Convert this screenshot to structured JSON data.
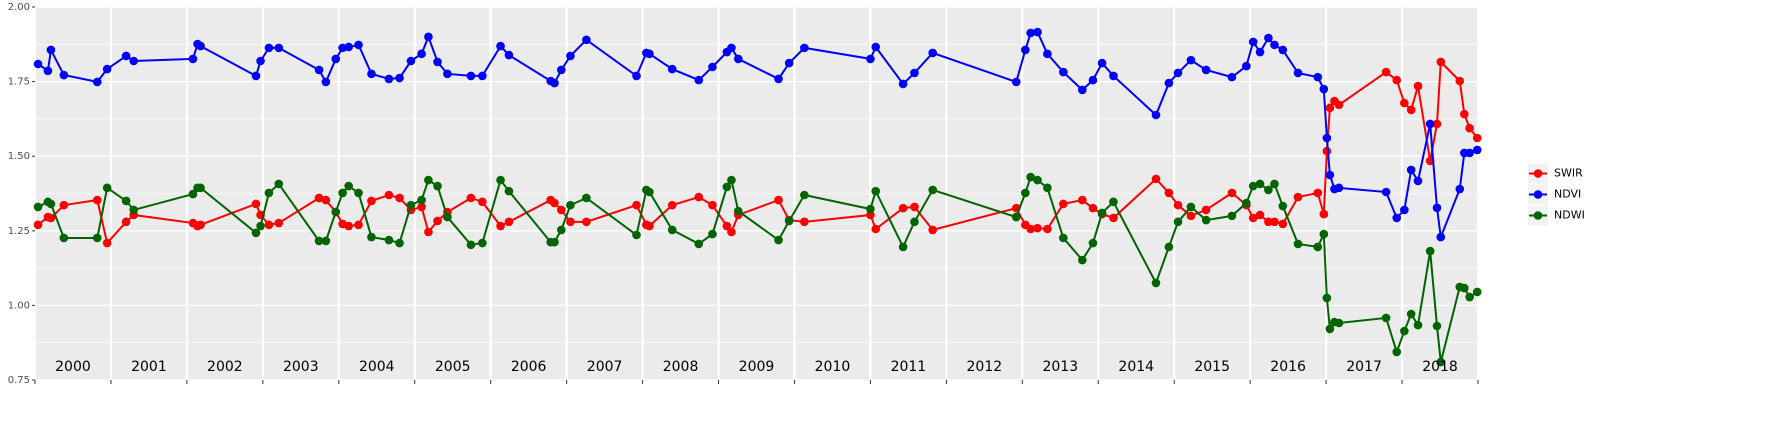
{
  "chart_data": {
    "type": "line",
    "x": [
      2000.04,
      2000.17,
      2000.21,
      2000.38,
      2000.82,
      2000.95,
      2001.2,
      2001.3,
      2002.08,
      2002.14,
      2002.18,
      2002.91,
      2002.97,
      2003.08,
      2003.21,
      2003.74,
      2003.83,
      2003.96,
      2004.05,
      2004.13,
      2004.26,
      2004.43,
      2004.66,
      2004.8,
      2004.95,
      2005.09,
      2005.18,
      2005.3,
      2005.43,
      2005.74,
      2005.89,
      2006.13,
      2006.24,
      2006.79,
      2006.84,
      2006.93,
      2007.05,
      2007.26,
      2007.92,
      2008.05,
      2008.09,
      2008.39,
      2008.74,
      2008.92,
      2009.11,
      2009.17,
      2009.26,
      2009.79,
      2009.93,
      2010.13,
      2011.0,
      2011.07,
      2011.43,
      2011.58,
      2011.82,
      2012.92,
      2013.04,
      2013.11,
      2013.2,
      2013.33,
      2013.54,
      2013.79,
      2013.93,
      2014.05,
      2014.2,
      2014.76,
      2014.93,
      2015.05,
      2015.22,
      2015.42,
      2015.76,
      2015.95,
      2016.04,
      2016.13,
      2016.24,
      2016.32,
      2016.43,
      2016.63,
      2016.89,
      2016.97,
      2017.01,
      2017.05,
      2017.11,
      2017.17,
      2017.79,
      2017.93,
      2018.03,
      2018.12,
      2018.21,
      2018.37,
      2018.46,
      2018.51,
      2018.76,
      2018.82,
      2018.89,
      2018.99
    ],
    "series": [
      {
        "name": "SWIR",
        "color": "#ff0000",
        "values": [
          1.27,
          1.296,
          1.293,
          1.336,
          1.353,
          1.209,
          1.28,
          1.303,
          1.276,
          1.266,
          1.27,
          1.34,
          1.303,
          1.27,
          1.276,
          1.36,
          1.353,
          1.313,
          1.273,
          1.266,
          1.27,
          1.35,
          1.37,
          1.36,
          1.32,
          1.33,
          1.246,
          1.283,
          1.313,
          1.36,
          1.347,
          1.266,
          1.28,
          1.353,
          1.343,
          1.32,
          1.28,
          1.28,
          1.336,
          1.27,
          1.266,
          1.336,
          1.363,
          1.336,
          1.266,
          1.246,
          1.303,
          1.353,
          1.286,
          1.28,
          1.303,
          1.256,
          1.326,
          1.33,
          1.253,
          1.326,
          1.27,
          1.256,
          1.259,
          1.256,
          1.34,
          1.353,
          1.326,
          1.306,
          1.293,
          1.424,
          1.377,
          1.336,
          1.3,
          1.32,
          1.377,
          1.336,
          1.293,
          1.303,
          1.28,
          1.28,
          1.273,
          1.363,
          1.377,
          1.306,
          1.517,
          1.662,
          1.685,
          1.672,
          1.782,
          1.755,
          1.678,
          1.655,
          1.735,
          1.484,
          1.608,
          1.816,
          1.752,
          1.641,
          1.594,
          1.561
        ]
      },
      {
        "name": "NDVI",
        "color": "#0000ff",
        "values": [
          1.809,
          1.786,
          1.856,
          1.772,
          1.749,
          1.792,
          1.836,
          1.819,
          1.826,
          1.876,
          1.869,
          1.769,
          1.819,
          1.863,
          1.863,
          1.789,
          1.749,
          1.826,
          1.863,
          1.866,
          1.873,
          1.776,
          1.759,
          1.762,
          1.819,
          1.843,
          1.9,
          1.816,
          1.776,
          1.769,
          1.769,
          1.869,
          1.839,
          1.752,
          1.745,
          1.789,
          1.836,
          1.89,
          1.769,
          1.846,
          1.843,
          1.792,
          1.755,
          1.799,
          1.849,
          1.863,
          1.826,
          1.759,
          1.812,
          1.863,
          1.826,
          1.866,
          1.742,
          1.779,
          1.846,
          1.749,
          1.856,
          1.913,
          1.916,
          1.843,
          1.782,
          1.722,
          1.755,
          1.812,
          1.769,
          1.638,
          1.745,
          1.779,
          1.822,
          1.789,
          1.765,
          1.802,
          1.883,
          1.849,
          1.896,
          1.873,
          1.856,
          1.779,
          1.765,
          1.725,
          1.561,
          1.437,
          1.39,
          1.394,
          1.38,
          1.293,
          1.32,
          1.454,
          1.417,
          1.608,
          1.327,
          1.229,
          1.39,
          1.511,
          1.511,
          1.521
        ]
      },
      {
        "name": "NDWI",
        "color": "#006400",
        "values": [
          1.33,
          1.347,
          1.34,
          1.226,
          1.226,
          1.394,
          1.35,
          1.32,
          1.373,
          1.394,
          1.394,
          1.243,
          1.266,
          1.377,
          1.407,
          1.216,
          1.216,
          1.313,
          1.377,
          1.4,
          1.377,
          1.229,
          1.219,
          1.209,
          1.336,
          1.353,
          1.42,
          1.4,
          1.296,
          1.203,
          1.209,
          1.42,
          1.383,
          1.212,
          1.212,
          1.253,
          1.336,
          1.36,
          1.236,
          1.387,
          1.38,
          1.253,
          1.206,
          1.239,
          1.397,
          1.42,
          1.316,
          1.219,
          1.283,
          1.37,
          1.323,
          1.383,
          1.196,
          1.28,
          1.387,
          1.296,
          1.377,
          1.43,
          1.42,
          1.394,
          1.226,
          1.152,
          1.209,
          1.31,
          1.347,
          1.075,
          1.196,
          1.28,
          1.33,
          1.286,
          1.3,
          1.343,
          1.4,
          1.407,
          1.387,
          1.407,
          1.333,
          1.206,
          1.196,
          1.239,
          1.025,
          0.921,
          0.944,
          0.941,
          0.958,
          0.844,
          0.914,
          0.971,
          0.934,
          1.182,
          0.931,
          0.81,
          1.062,
          1.058,
          1.028,
          1.045
        ]
      }
    ],
    "xlim": [
      2000,
      2019
    ],
    "xticks": [
      2000,
      2001,
      2002,
      2003,
      2004,
      2005,
      2006,
      2007,
      2008,
      2009,
      2010,
      2011,
      2012,
      2013,
      2014,
      2015,
      2016,
      2017,
      2018,
      2019
    ],
    "year_labels": [
      "2000",
      "2001",
      "2002",
      "2003",
      "2004",
      "2005",
      "2006",
      "2007",
      "2008",
      "2009",
      "2010",
      "2011",
      "2012",
      "2013",
      "2014",
      "2015",
      "2016",
      "2017",
      "2018"
    ],
    "ylim": [
      0.75,
      2.0
    ],
    "yticks": [
      0.75,
      {
        "value": 1.0,
        "label": "1.00"
      },
      1.25,
      {
        "value": 1.5,
        "label": "1.50"
      },
      1.75,
      {
        "value": 2.0,
        "label": "2.00"
      }
    ],
    "grid": true,
    "legend": "right"
  }
}
